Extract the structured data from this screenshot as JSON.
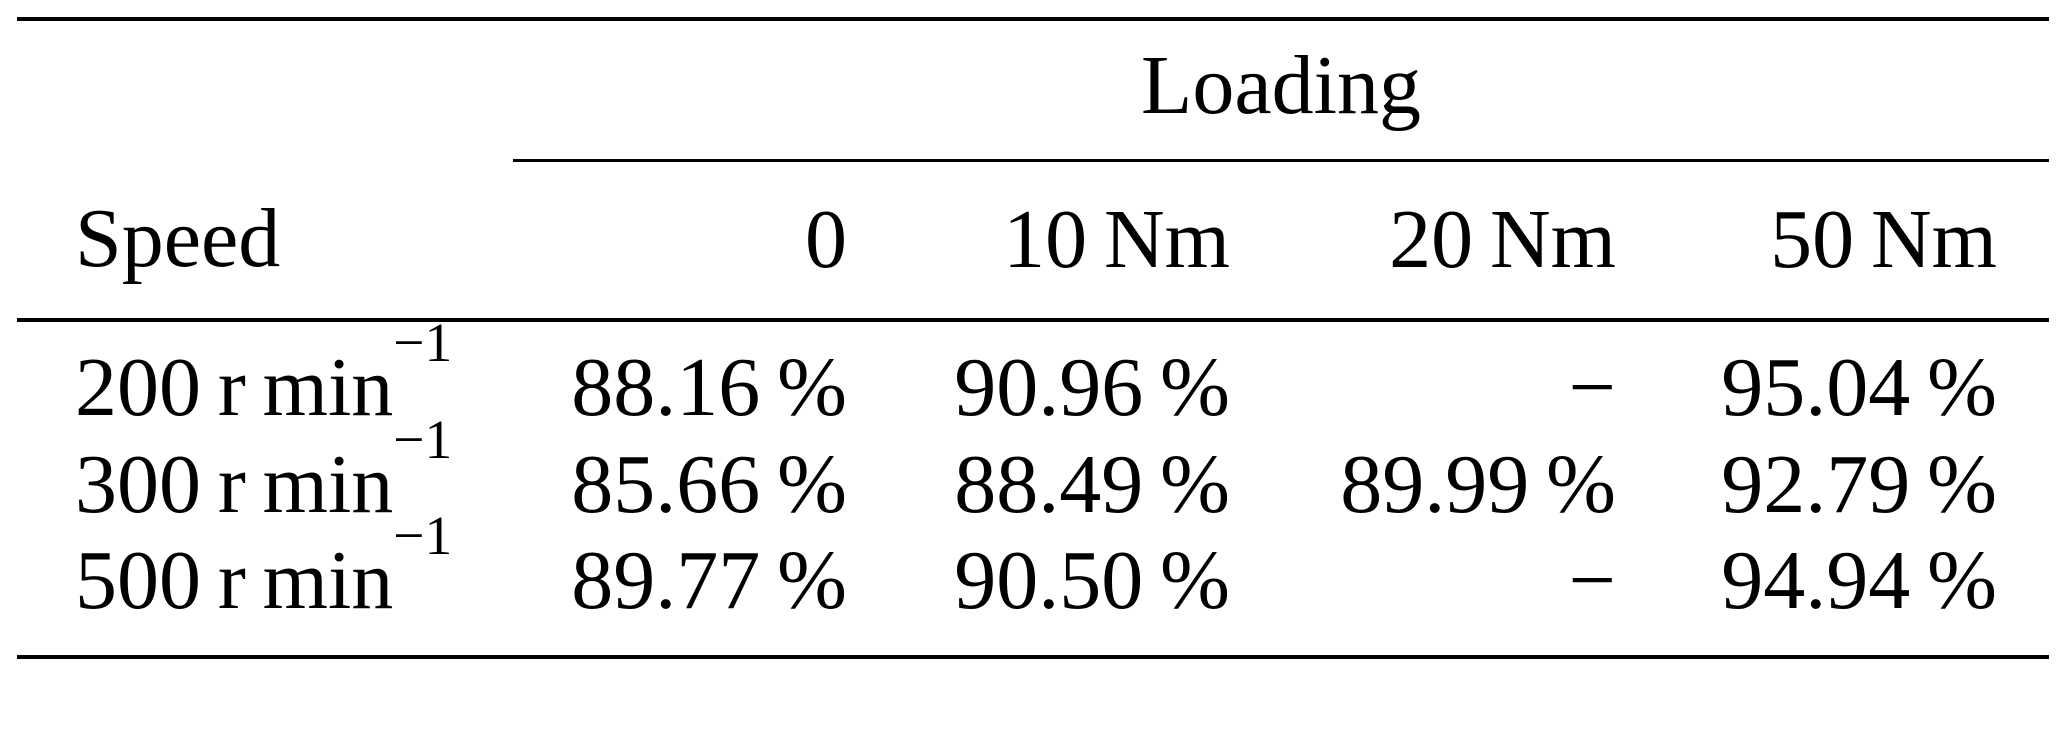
{
  "page": {
    "background_color": "#ffffff",
    "text_color": "#000000"
  },
  "table": {
    "group_header": "Loading",
    "columns": [
      "Speed",
      "0",
      "10 Nm",
      "20 Nm",
      "50 Nm"
    ],
    "rows": [
      {
        "label_main": "200 r min",
        "label_sup": "−1",
        "values": [
          "88.16 %",
          "90.96 %",
          "−",
          "95.04 %"
        ]
      },
      {
        "label_main": "300 r min",
        "label_sup": "−1",
        "values": [
          "85.66 %",
          "88.49 %",
          "89.99 %",
          "92.79 %"
        ]
      },
      {
        "label_main": "500 r min",
        "label_sup": "−1",
        "values": [
          "89.77 %",
          "90.50 %",
          "−",
          "94.94 %"
        ]
      }
    ]
  }
}
